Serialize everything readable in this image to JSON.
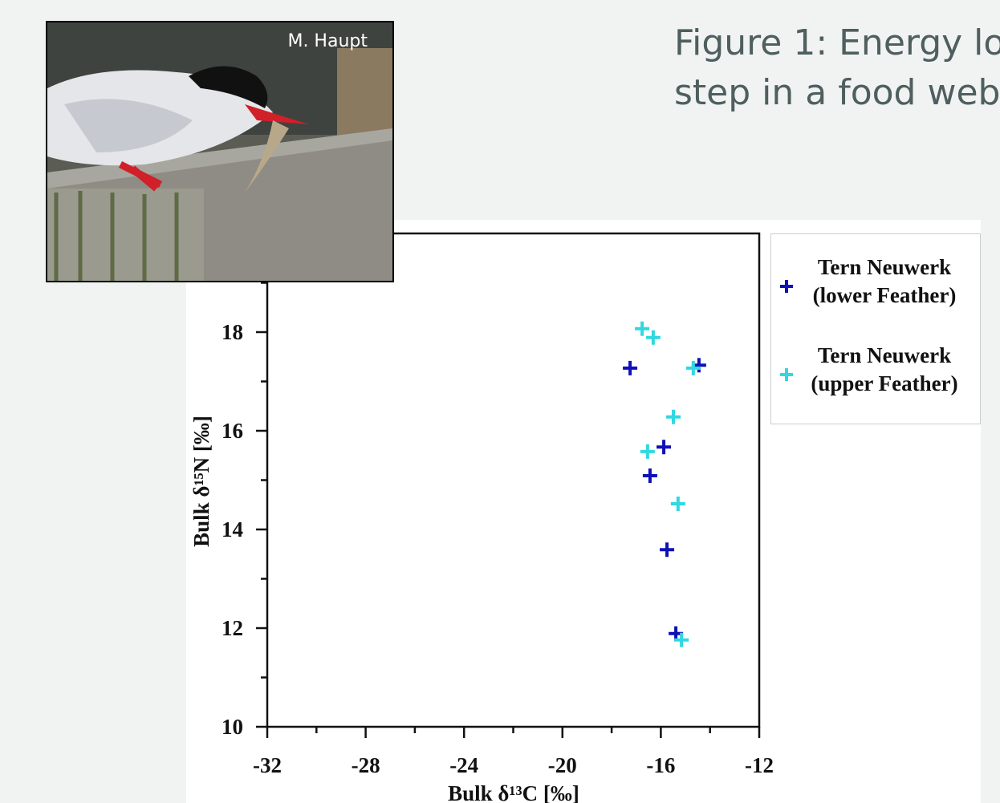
{
  "caption": {
    "line1": "Figure 1: Energy lo",
    "line2": "step in a food web"
  },
  "photo_credit": "M. Haupt",
  "chart_data": {
    "type": "scatter",
    "x_label": "Bulk δ¹³C [‰]",
    "y_label": "Bulk δ¹⁵N [‰]",
    "xlim": [
      -32,
      -12
    ],
    "xticks": [
      -32,
      -28,
      -24,
      -20,
      -16,
      -12
    ],
    "ylim": [
      10,
      20
    ],
    "yticks": [
      10,
      12,
      14,
      16,
      18
    ],
    "legend": "upper right",
    "series": [
      {
        "name": "Tern Neuwerk (lower Feather)",
        "color": "#1010b8",
        "x": [
          -17.25,
          -14.45,
          -15.88,
          -16.44,
          -15.75,
          -15.39
        ],
        "values": [
          17.27,
          17.33,
          15.67,
          15.09,
          13.59,
          11.89
        ]
      },
      {
        "name": "Tern Neuwerk (upper Feather)",
        "color": "#30d8e0",
        "x": [
          -16.76,
          -16.31,
          -14.68,
          -15.49,
          -16.54,
          -15.3,
          -15.16
        ],
        "values": [
          18.07,
          17.89,
          17.27,
          16.28,
          15.58,
          14.52,
          11.76
        ]
      }
    ]
  }
}
